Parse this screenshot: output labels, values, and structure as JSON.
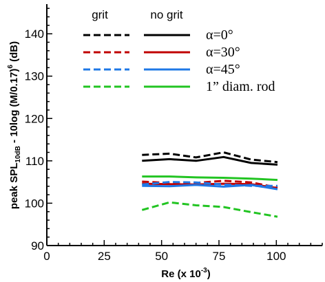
{
  "chart_data": {
    "type": "line",
    "xlabel": {
      "main": "Re (x 10",
      "sup": "-3",
      "close": ")"
    },
    "ylabel": {
      "pre": "peak SPL",
      "sub": "10dB",
      "mid": " - 10log (M/0.17)",
      "sup": "6",
      "post": " (dB)"
    },
    "xlim": [
      0,
      120
    ],
    "ylim": [
      90,
      147
    ],
    "xticks": [
      0,
      25,
      50,
      75,
      100
    ],
    "yticks": [
      90,
      100,
      110,
      120,
      130,
      140
    ],
    "grid": false,
    "legend": {
      "placement": "top-left",
      "col_headers": [
        "grit",
        "no grit"
      ],
      "rows": [
        {
          "label": "α=0°",
          "color": "#000000"
        },
        {
          "label": "α=30°",
          "color": "#c00000"
        },
        {
          "label": "α=45°",
          "color": "#1e78e6"
        },
        {
          "label": "1” diam. rod",
          "color": "#22c422"
        }
      ]
    },
    "series": [
      {
        "group": "α=0°",
        "condition": "grit",
        "dashed": true,
        "color": "#000000",
        "x": [
          41.5,
          53.5,
          65,
          77,
          89,
          100.5
        ],
        "y": [
          111.4,
          111.7,
          110.8,
          112.0,
          110.3,
          109.7
        ]
      },
      {
        "group": "α=0°",
        "condition": "no grit",
        "dashed": false,
        "color": "#000000",
        "x": [
          41.5,
          53.5,
          65,
          77,
          89,
          100.5
        ],
        "y": [
          110.0,
          110.4,
          110.0,
          110.9,
          109.5,
          109.1
        ]
      },
      {
        "group": "α=30°",
        "condition": "grit",
        "dashed": true,
        "color": "#c00000",
        "x": [
          41.5,
          53.5,
          65,
          77,
          89,
          100.5
        ],
        "y": [
          105.1,
          104.8,
          104.8,
          105.3,
          104.9,
          103.7
        ]
      },
      {
        "group": "α=30°",
        "condition": "no grit",
        "dashed": false,
        "color": "#c00000",
        "x": [
          41.5,
          53.5,
          65,
          77,
          89,
          100.5
        ],
        "y": [
          104.6,
          104.5,
          104.4,
          104.6,
          104.5,
          103.6
        ]
      },
      {
        "group": "α=45°",
        "condition": "grit",
        "dashed": true,
        "color": "#1e78e6",
        "x": [
          41.5,
          53.5,
          65,
          77,
          89,
          100.5
        ],
        "y": [
          104.4,
          105.0,
          104.9,
          104.4,
          104.1,
          104.1
        ]
      },
      {
        "group": "α=45°",
        "condition": "no grit",
        "dashed": false,
        "color": "#1e78e6",
        "x": [
          41.5,
          53.5,
          65,
          77,
          89,
          100.5
        ],
        "y": [
          104.1,
          104.0,
          104.3,
          103.9,
          104.3,
          103.3
        ]
      },
      {
        "group": "1” diam. rod",
        "condition": "grit",
        "dashed": true,
        "color": "#22c422",
        "x": [
          41.5,
          53.5,
          65,
          77,
          89,
          100.5
        ],
        "y": [
          98.4,
          100.2,
          99.5,
          99.1,
          97.9,
          96.8
        ]
      },
      {
        "group": "1” diam. rod",
        "condition": "no grit",
        "dashed": false,
        "color": "#22c422",
        "x": [
          41.5,
          53.5,
          65,
          77,
          89,
          100.5
        ],
        "y": [
          106.3,
          106.3,
          106.1,
          106.0,
          105.8,
          105.5
        ]
      }
    ]
  }
}
